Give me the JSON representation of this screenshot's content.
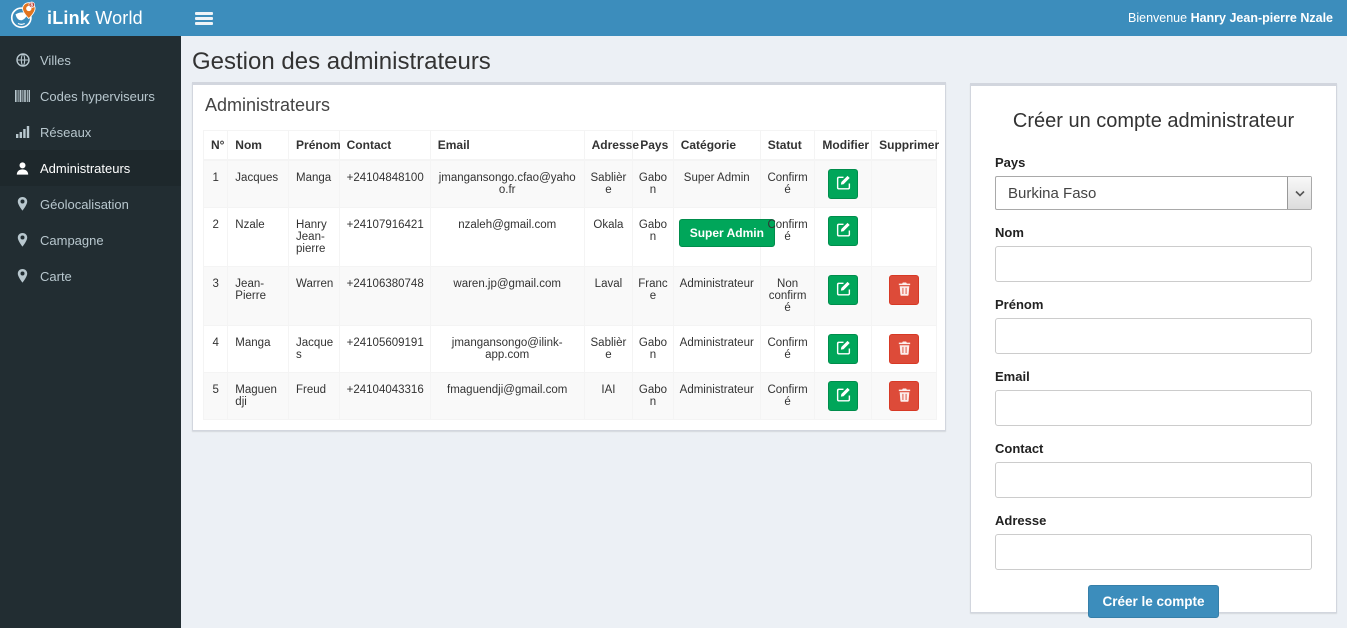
{
  "app": {
    "brand_bold": "iLink",
    "brand_rest": " World",
    "welcome_prefix": "Bienvenue ",
    "welcome_name": "Hanry Jean-pierre Nzale"
  },
  "colors": {
    "topbar": "#3c8dbc",
    "sidebar": "#222d32",
    "sidebar_active": "#1e282c",
    "content_bg": "#ecf0f5",
    "success": "#00a65a",
    "danger": "#dd4b39",
    "primary": "#3c8dbc"
  },
  "sidebar": {
    "items": [
      {
        "name": "villes",
        "label": "Villes",
        "icon": "globe-icon",
        "active": false
      },
      {
        "name": "codes-hyperviseurs",
        "label": "Codes hyperviseurs",
        "icon": "barcode-icon",
        "active": false
      },
      {
        "name": "reseaux",
        "label": "Réseaux",
        "icon": "signal-bars-icon",
        "active": false
      },
      {
        "name": "administrateurs",
        "label": "Administrateurs",
        "icon": "user-icon",
        "active": true
      },
      {
        "name": "geolocalisation",
        "label": "Géolocalisation",
        "icon": "map-marker-icon",
        "active": false
      },
      {
        "name": "campagne",
        "label": "Campagne",
        "icon": "map-marker-icon",
        "active": false
      },
      {
        "name": "carte",
        "label": "Carte",
        "icon": "map-marker-icon",
        "active": false
      }
    ]
  },
  "page": {
    "title": "Gestion des administrateurs"
  },
  "table_panel": {
    "title": "Administrateurs",
    "headers": [
      "N°",
      "Nom",
      "Prénom",
      "Contact",
      "Email",
      "Adresse",
      "Pays",
      "Catégorie",
      "Statut",
      "Modifier",
      "Supprimer"
    ],
    "rows": [
      {
        "num": "1",
        "nom": "Jacques",
        "prenom": "Manga",
        "contact": "+24104848100",
        "email": "jmangansongo.cfao@yahoo.fr",
        "adresse": "Sablière",
        "pays": "Gabon",
        "categorie": "Super Admin",
        "categorie_badge": false,
        "statut": "Confirmé",
        "deletable": false
      },
      {
        "num": "2",
        "nom": "Nzale",
        "prenom": "Hanry Jean-pierre",
        "contact": "+24107916421",
        "email": "nzaleh@gmail.com",
        "adresse": "Okala",
        "pays": "Gabon",
        "categorie": "Super Admin",
        "categorie_badge": true,
        "statut": "Confirmé",
        "deletable": false
      },
      {
        "num": "3",
        "nom": "Jean-Pierre",
        "prenom": "Warren",
        "contact": "+24106380748",
        "email": "waren.jp@gmail.com",
        "adresse": "Laval",
        "pays": "France",
        "categorie": "Administrateur",
        "categorie_badge": false,
        "statut": "Non confirmé",
        "deletable": true
      },
      {
        "num": "4",
        "nom": "Manga",
        "prenom": "Jacques",
        "contact": "+24105609191",
        "email": "jmangansongo@ilink-app.com",
        "adresse": "Sablière",
        "pays": "Gabon",
        "categorie": "Administrateur",
        "categorie_badge": false,
        "statut": "Confirmé",
        "deletable": true
      },
      {
        "num": "5",
        "nom": "Maguendji",
        "prenom": "Freud",
        "contact": "+24104043316",
        "email": "fmaguendji@gmail.com",
        "adresse": "IAI",
        "pays": "Gabon",
        "categorie": "Administrateur",
        "categorie_badge": false,
        "statut": "Confirmé",
        "deletable": true
      }
    ]
  },
  "form_panel": {
    "title": "Créer un compte administrateur",
    "submit_label": "Créer le compte",
    "fields": [
      {
        "name": "pays",
        "label": "Pays",
        "type": "select",
        "value": "Burkina Faso"
      },
      {
        "name": "nom",
        "label": "Nom",
        "type": "input",
        "value": ""
      },
      {
        "name": "prenom",
        "label": "Prénom",
        "type": "input",
        "value": ""
      },
      {
        "name": "email",
        "label": "Email",
        "type": "input",
        "value": ""
      },
      {
        "name": "contact",
        "label": "Contact",
        "type": "input",
        "value": ""
      },
      {
        "name": "adresse",
        "label": "Adresse",
        "type": "input",
        "value": ""
      }
    ]
  }
}
